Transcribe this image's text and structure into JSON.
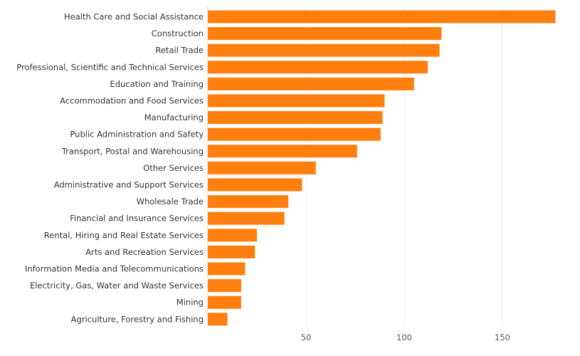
{
  "chart_data": {
    "type": "bar",
    "orientation": "horizontal",
    "title": "",
    "xlabel": "",
    "ylabel": "",
    "xlim": [
      0,
      185
    ],
    "xticks": [
      50,
      100,
      150
    ],
    "grid": true,
    "bar_color": "#ff7f0e",
    "categories": [
      "Health Care and Social Assistance",
      "Construction",
      "Retail Trade",
      "Professional, Scientific and Technical Services",
      "Education and Training",
      "Accommodation and Food Services",
      "Manufacturing",
      "Public Administration and Safety",
      "Transport, Postal and Warehousing",
      "Other Services",
      "Administrative and Support Services",
      "Wholesale Trade",
      "Financial and Insurance Services",
      "Rental, Hiring and Real Estate Services",
      "Arts and Recreation Services",
      "Information Media and Telecommunications",
      "Electricity, Gas, Water and Waste Services",
      "Mining",
      "Agriculture, Forestry and Fishing"
    ],
    "values": [
      177,
      119,
      118,
      112,
      105,
      90,
      89,
      88,
      76,
      55,
      48,
      41,
      39,
      25,
      24,
      19,
      17,
      17,
      10
    ]
  }
}
